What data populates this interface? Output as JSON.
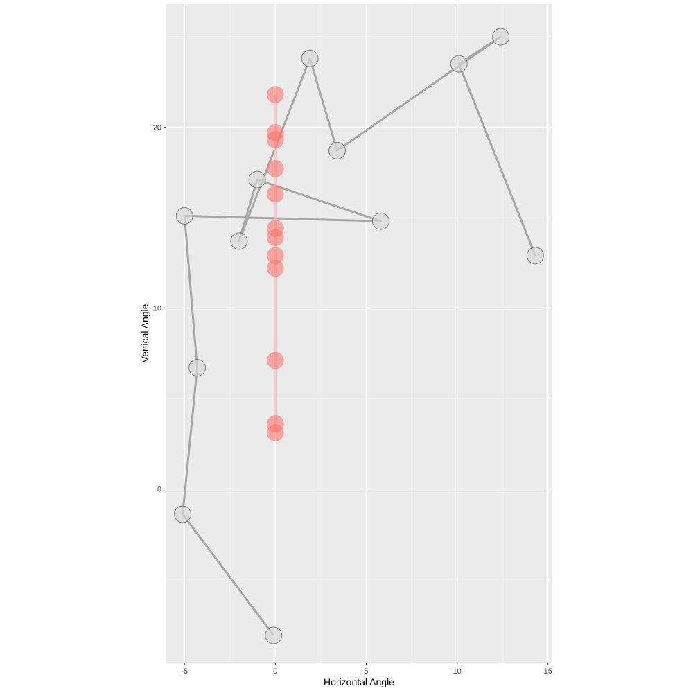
{
  "chart_data": {
    "type": "scatter",
    "title": "",
    "xlabel": "Horizontal Angle",
    "ylabel": "Vertical Angle",
    "xlim": [
      -6.0,
      15.2
    ],
    "ylim": [
      -9.6,
      26.8
    ],
    "x_ticks": [
      -5,
      0,
      5,
      10,
      15
    ],
    "x_tick_labels": [
      "-5",
      "0",
      "5",
      "10",
      "15"
    ],
    "y_ticks": [
      0,
      10,
      20
    ],
    "y_tick_labels": [
      "0",
      "10",
      "20"
    ],
    "grid": true,
    "legend": "none",
    "series": [
      {
        "color": "#a6a6a6",
        "point_fill": "#d9d9d9",
        "point_stroke": "#555555",
        "connected": true,
        "points": [
          {
            "x": 14.3,
            "y": 12.9
          },
          {
            "x": 10.1,
            "y": 23.5
          },
          {
            "x": 12.4,
            "y": 25.0
          },
          {
            "x": 3.4,
            "y": 18.7
          },
          {
            "x": 1.9,
            "y": 23.8
          },
          {
            "x": -2.0,
            "y": 13.7
          },
          {
            "x": -1.0,
            "y": 17.1
          },
          {
            "x": 5.8,
            "y": 14.8
          },
          {
            "x": -5.0,
            "y": 15.1
          },
          {
            "x": -4.3,
            "y": 6.7
          },
          {
            "x": -5.1,
            "y": -1.4
          },
          {
            "x": -0.1,
            "y": -8.1
          }
        ]
      },
      {
        "color": "#f8b4bc",
        "point_fill": "#f8766d",
        "point_stroke": "#f8766d",
        "connected": true,
        "points": [
          {
            "x": 0,
            "y": 21.8
          },
          {
            "x": 0,
            "y": 19.7
          },
          {
            "x": 0,
            "y": 19.3
          },
          {
            "x": 0,
            "y": 17.7
          },
          {
            "x": 0,
            "y": 16.3
          },
          {
            "x": 0,
            "y": 14.4
          },
          {
            "x": 0,
            "y": 13.9
          },
          {
            "x": 0,
            "y": 12.9
          },
          {
            "x": 0,
            "y": 12.2
          },
          {
            "x": 0,
            "y": 7.1
          },
          {
            "x": 0,
            "y": 3.6
          },
          {
            "x": 0,
            "y": 3.1
          }
        ]
      }
    ]
  }
}
